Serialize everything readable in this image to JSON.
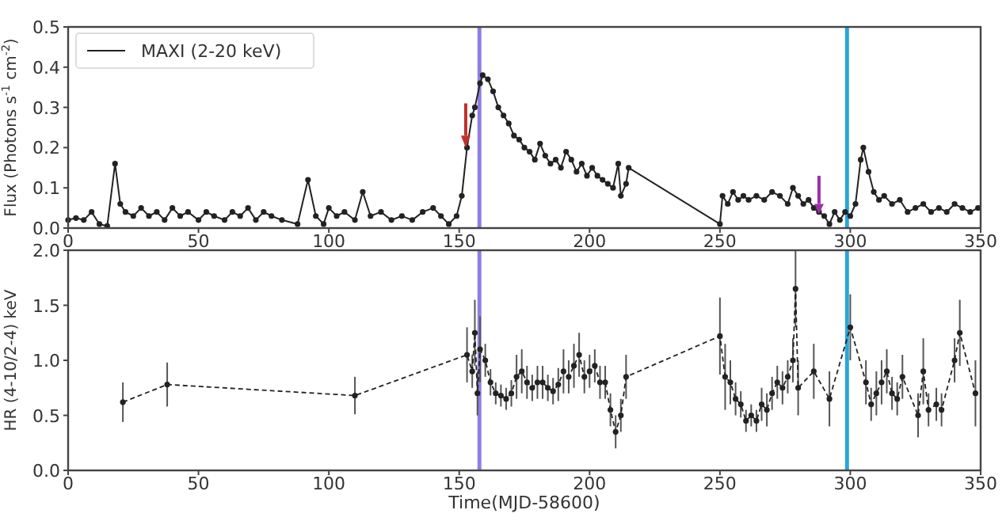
{
  "chart_data": [
    {
      "type": "line",
      "ylabel": "Flux (Photons s$^{-1}$ cm$^{-2}$)",
      "xlim": [
        0,
        350
      ],
      "xticks": [
        0,
        50,
        100,
        150,
        200,
        250,
        300,
        350
      ],
      "ylim": [
        0,
        0.5
      ],
      "yticks": [
        {
          "value": 0,
          "label": "0.0"
        },
        {
          "value": 0.1,
          "label": "0.1"
        },
        {
          "value": 0.2,
          "label": "0.2"
        },
        {
          "value": 0.3,
          "label": "0.3"
        },
        {
          "value": 0.4,
          "label": "0.4"
        },
        {
          "value": 0.5,
          "label": "0.5"
        }
      ],
      "grid": false,
      "legend": "top left",
      "marker": "circle",
      "line_style": "solid",
      "series": [
        {
          "name": "MAXI (2-20 keV)",
          "color": "#222222",
          "x": [
            0,
            3,
            6,
            9,
            12,
            15,
            18,
            20,
            22,
            25,
            28,
            31,
            34,
            37,
            40,
            43,
            46,
            50,
            53,
            56,
            60,
            63,
            66,
            69,
            72,
            75,
            78,
            82,
            88,
            92,
            95,
            98,
            100,
            103,
            106,
            110,
            113,
            116,
            120,
            124,
            128,
            132,
            136,
            140,
            143,
            146,
            149,
            151,
            153,
            155,
            156,
            158,
            159,
            161,
            163,
            165,
            167,
            169,
            171,
            173,
            175,
            177,
            179,
            181,
            183,
            185,
            187,
            189,
            191,
            193,
            195,
            197,
            199,
            201,
            203,
            205,
            207,
            209,
            211,
            212,
            214,
            215,
            250,
            251,
            253,
            255,
            257,
            259,
            261,
            264,
            267,
            270,
            273,
            276,
            278,
            280,
            282,
            284,
            286,
            288,
            290,
            292,
            294,
            296,
            298,
            300,
            302,
            304,
            305,
            307,
            309,
            311,
            313,
            316,
            319,
            322,
            325,
            328,
            331,
            334,
            337,
            340,
            343,
            346,
            349
          ],
          "values": [
            0.02,
            0.025,
            0.02,
            0.04,
            0.01,
            0.005,
            0.16,
            0.06,
            0.04,
            0.03,
            0.05,
            0.03,
            0.04,
            0.02,
            0.05,
            0.03,
            0.04,
            0.02,
            0.04,
            0.03,
            0.02,
            0.04,
            0.03,
            0.05,
            0.02,
            0.04,
            0.03,
            0.02,
            0.01,
            0.12,
            0.03,
            0.01,
            0.05,
            0.03,
            0.04,
            0.02,
            0.09,
            0.03,
            0.04,
            0.02,
            0.03,
            0.02,
            0.04,
            0.05,
            0.03,
            0.01,
            0.03,
            0.08,
            0.2,
            0.28,
            0.3,
            0.36,
            0.38,
            0.37,
            0.34,
            0.3,
            0.28,
            0.26,
            0.23,
            0.22,
            0.2,
            0.19,
            0.17,
            0.21,
            0.18,
            0.16,
            0.17,
            0.15,
            0.19,
            0.17,
            0.14,
            0.16,
            0.13,
            0.15,
            0.13,
            0.12,
            0.11,
            0.1,
            0.16,
            0.08,
            0.11,
            0.15,
            0.01,
            0.08,
            0.06,
            0.09,
            0.07,
            0.08,
            0.07,
            0.08,
            0.07,
            0.09,
            0.08,
            0.06,
            0.1,
            0.08,
            0.06,
            0.07,
            0.05,
            0.04,
            0.03,
            0.01,
            0.04,
            0.02,
            0.04,
            0.03,
            0.06,
            0.17,
            0.2,
            0.14,
            0.09,
            0.07,
            0.08,
            0.06,
            0.07,
            0.04,
            0.05,
            0.06,
            0.04,
            0.05,
            0.04,
            0.06,
            0.05,
            0.04,
            0.05
          ]
        }
      ],
      "bands": [
        {
          "axis": "x",
          "from": 157,
          "to": 158.5,
          "color": "#8f7ee0"
        },
        {
          "axis": "x",
          "from": 298,
          "to": 299.5,
          "color": "#2aa5d8"
        }
      ]
    },
    {
      "type": "line",
      "xlabel": "Time(MJD-58600)",
      "ylabel": "HR (4-10/2-4) keV",
      "xlim": [
        0,
        350
      ],
      "xticks": [
        0,
        50,
        100,
        150,
        200,
        250,
        300,
        350
      ],
      "ylim": [
        0,
        2
      ],
      "yticks": [
        {
          "value": 0,
          "label": "0.0"
        },
        {
          "value": 0.5,
          "label": "0.5"
        },
        {
          "value": 1,
          "label": "1.0"
        },
        {
          "value": 1.5,
          "label": "1.5"
        },
        {
          "value": 2,
          "label": "2.0"
        }
      ],
      "grid": false,
      "marker": "circle",
      "line_style": "dashed",
      "series": [
        {
          "color": "#222222",
          "x": [
            21,
            38,
            110,
            153,
            155,
            156,
            157,
            158,
            160,
            162,
            164,
            166,
            168,
            170,
            172,
            174,
            176,
            178,
            180,
            182,
            184,
            186,
            188,
            190,
            192,
            194,
            196,
            198,
            200,
            202,
            204,
            206,
            208,
            210,
            212,
            214,
            250,
            252,
            254,
            256,
            258,
            260,
            262,
            264,
            266,
            268,
            270,
            272,
            274,
            276,
            278,
            279,
            280,
            286,
            292,
            300,
            306,
            308,
            310,
            312,
            314,
            316,
            318,
            320,
            326,
            328,
            330,
            333,
            335,
            340,
            342,
            348
          ],
          "values": [
            0.62,
            0.78,
            0.68,
            1.05,
            0.9,
            1.25,
            0.7,
            1.1,
            1.0,
            0.8,
            0.7,
            0.68,
            0.65,
            0.7,
            0.85,
            0.9,
            0.8,
            0.75,
            0.8,
            0.8,
            0.75,
            0.72,
            0.78,
            0.9,
            0.85,
            0.95,
            1.05,
            0.85,
            0.9,
            0.95,
            0.8,
            0.8,
            0.55,
            0.35,
            0.5,
            0.85,
            1.22,
            0.85,
            0.8,
            0.65,
            0.6,
            0.45,
            0.5,
            0.45,
            0.6,
            0.55,
            0.7,
            0.8,
            0.75,
            0.85,
            1.0,
            1.65,
            0.75,
            0.9,
            0.65,
            1.3,
            0.8,
            0.6,
            0.7,
            0.8,
            0.9,
            0.7,
            0.65,
            0.85,
            0.5,
            0.9,
            0.55,
            0.6,
            0.55,
            1.0,
            1.25,
            0.7
          ],
          "errors": [
            0.18,
            0.2,
            0.17,
            0.25,
            0.15,
            0.3,
            0.2,
            0.3,
            0.15,
            0.12,
            0.1,
            0.1,
            0.1,
            0.12,
            0.2,
            0.2,
            0.15,
            0.12,
            0.15,
            0.15,
            0.12,
            0.12,
            0.15,
            0.2,
            0.15,
            0.2,
            0.2,
            0.15,
            0.15,
            0.15,
            0.15,
            0.15,
            0.15,
            0.15,
            0.15,
            0.2,
            0.35,
            0.3,
            0.2,
            0.15,
            0.12,
            0.1,
            0.1,
            0.1,
            0.15,
            0.15,
            0.15,
            0.15,
            0.15,
            0.15,
            0.2,
            0.35,
            0.25,
            0.25,
            0.25,
            0.3,
            0.2,
            0.15,
            0.2,
            0.2,
            0.2,
            0.15,
            0.15,
            0.2,
            0.2,
            0.3,
            0.15,
            0.15,
            0.15,
            0.2,
            0.3,
            0.3
          ]
        }
      ],
      "bands": [
        {
          "axis": "x",
          "from": 157,
          "to": 158.5,
          "color": "#8f7ee0"
        },
        {
          "axis": "x",
          "from": 298,
          "to": 299.5,
          "color": "#2aa5d8"
        }
      ]
    }
  ]
}
